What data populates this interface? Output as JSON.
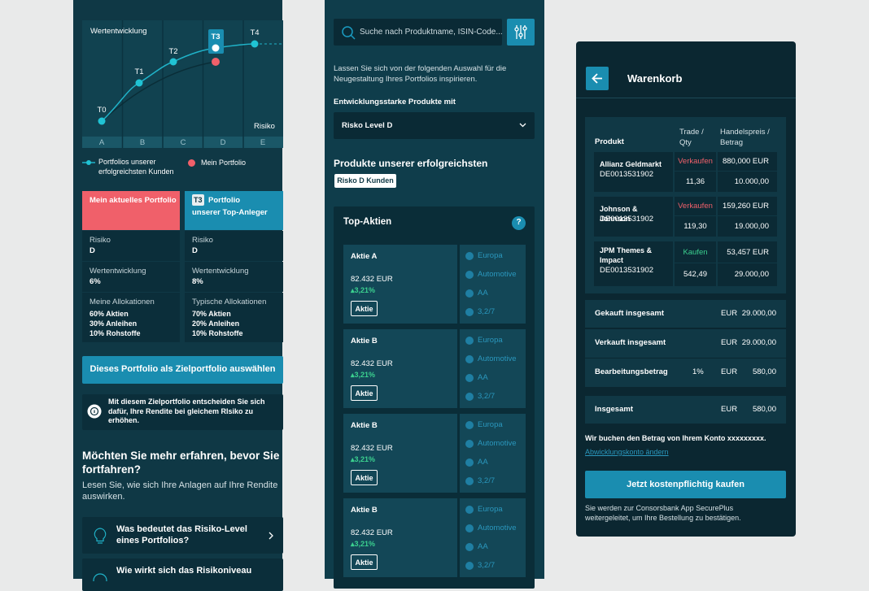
{
  "screen1": {
    "chart": {
      "title": "Wertentwicklung",
      "points": [
        "T0",
        "T1",
        "T2",
        "T3",
        "T4"
      ],
      "axis_label": "Risiko",
      "categories": [
        "A",
        "B",
        "C",
        "D",
        "E"
      ]
    },
    "legend": [
      "Portfolios unserer erfolgreichsten Kunden",
      "Mein Portfolio"
    ],
    "cards": [
      {
        "header": [
          "Mein aktuelles Portfolio"
        ],
        "rows": [
          {
            "label": "Risiko",
            "value": "D"
          },
          {
            "label": "Wertentwicklung",
            "value": "6%"
          }
        ],
        "alloc_label": "Meine Allokationen",
        "allocations": [
          "60% Aktien",
          "30% Anleihen",
          "10% Rohstoffe"
        ]
      },
      {
        "badge": "T3",
        "header": [
          "Portfolio",
          "unserer Top-Anleger"
        ],
        "rows": [
          {
            "label": "Risiko",
            "value": "D"
          },
          {
            "label": "Wertentwicklung",
            "value": "8%"
          }
        ],
        "alloc_label": "Typische Allokationen",
        "allocations": [
          "70% Aktien",
          "20% Anleihen",
          "10% Rohstoffe"
        ]
      }
    ],
    "button": "Dieses Portfolio als Zielportfolio auswählen",
    "info": "Mit diesem Zielportfolio entscheiden Sie sich dafür, Ihre Rendite bei gleichem RIsiko zu erhöhen.",
    "heading": "Möchten Sie mehr erfahren, bevor Sie fortfahren?",
    "text": "Lesen Sie, wie sich Ihre Anlagen auf Ihre Rendite auswirken.",
    "faq": [
      "Was bedeutet das Risiko-Level eines Portfolios?",
      "Wie wirkt sich das Risikoniveau"
    ]
  },
  "screen2": {
    "search": "Suche nach Produktname, ISIN-Code...",
    "intro": "Lassen Sie sich von der folgenden Auswahl für die Neugestaltung Ihres Portfolios inspirieren.",
    "label": "Entwicklungsstarke Produkte mit",
    "select": "Risko Level D",
    "heading": "Produkte unserer erfolgreichsten",
    "chip": "Risko D Kunden",
    "section": "Top-Aktien",
    "help": "?",
    "stocks": [
      {
        "name": "Aktie A",
        "price": "82.432 EUR",
        "change": "▴3,21%",
        "tag": "Aktie",
        "attributes": [
          "Europa",
          "Automotive",
          "AA",
          "3,2/7"
        ]
      },
      {
        "name": "Aktie B",
        "price": "82.432 EUR",
        "change": "▴3,21%",
        "tag": "Aktie",
        "attributes": [
          "Europa",
          "Automotive",
          "AA",
          "3,2/7"
        ]
      },
      {
        "name": "Aktie B",
        "price": "82.432 EUR",
        "change": "▴3,21%",
        "tag": "Aktie",
        "attributes": [
          "Europa",
          "Automotive",
          "AA",
          "3,2/7"
        ]
      },
      {
        "name": "Aktie B",
        "price": "82.432 EUR",
        "change": "▴3,21%",
        "tag": "Aktie",
        "attributes": [
          "Europa",
          "Automotive",
          "AA",
          "3,2/7"
        ]
      }
    ]
  },
  "screen3": {
    "title": "Warenkorb",
    "headers": [
      "Produkt",
      "Trade / Qty",
      "Handelspreis / Betrag"
    ],
    "rows": [
      {
        "name": "Allianz Geldmarkt",
        "isin": "DE0013531902",
        "action": "Verkaufen",
        "color": "#f0606a",
        "price": "880,000 EUR",
        "qty": "11,36",
        "amount": "10.000,00"
      },
      {
        "name": "Johnson & Johnson",
        "isin": "DE0013531902",
        "action": "Verkaufen",
        "color": "#f0606a",
        "price": "159,260 EUR",
        "qty": "119,30",
        "amount": "19.000,00"
      },
      {
        "name": "JPM Themes & Impact",
        "isin": "DE0013531902",
        "action": "Kaufen",
        "color": "#3bd08f",
        "price": "53,457 EUR",
        "qty": "542,49",
        "amount": "29.000,00"
      }
    ],
    "summary": [
      {
        "label": "Gekauft insgesamt",
        "currency": "EUR",
        "amount": "29.000,00"
      },
      {
        "label": "Verkauft insgesamt",
        "currency": "EUR",
        "amount": "29.000,00"
      },
      {
        "label": "Bearbeitungsbetrag",
        "rate": "1%",
        "currency": "EUR",
        "amount": "580,00"
      }
    ],
    "total": {
      "label": "Insgesamt",
      "currency": "EUR",
      "amount": "580,00"
    },
    "note": "Wir buchen den Betrag von Ihrem Konto xxxxxxxxx.",
    "link": "Abwicklungskonto ändern",
    "button": "Jetzt kostenpflichtig kaufen",
    "footer": "Sie werden zur Consorsbank App SecurePlus weitergeleitet, um Ihre Bestellung zu bestätigen."
  }
}
